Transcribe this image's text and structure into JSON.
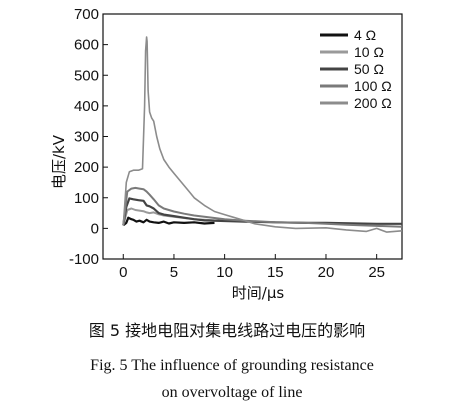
{
  "chart_data": {
    "type": "line",
    "xlabel": "时间/μs",
    "ylabel": "电压/kV",
    "xlim": [
      -2,
      27.5
    ],
    "ylim": [
      -100,
      700
    ],
    "xticks": [
      0,
      5,
      10,
      15,
      20,
      25
    ],
    "yticks": [
      -100,
      0,
      100,
      200,
      300,
      400,
      500,
      600,
      700
    ],
    "xtick_labels": [
      "0",
      "5",
      "10",
      "15",
      "20",
      "25"
    ],
    "ytick_labels": [
      "-100",
      "0",
      "100",
      "200",
      "300",
      "400",
      "500",
      "600",
      "700"
    ],
    "legend_position": "top-right",
    "grid": false,
    "series": [
      {
        "name": "4 Ω",
        "color": "#111111",
        "x": [
          0,
          0.3,
          0.5,
          0.8,
          1.0,
          1.3,
          1.6,
          2.0,
          2.3,
          2.6,
          3.0,
          3.5,
          4.0,
          4.5,
          5.0,
          6.0,
          7.0,
          8.0,
          9.0
        ],
        "y": [
          10,
          18,
          35,
          30,
          28,
          22,
          25,
          20,
          28,
          22,
          20,
          18,
          22,
          16,
          20,
          18,
          20,
          16,
          18
        ]
      },
      {
        "name": "10 Ω",
        "color": "#9a9a9a",
        "x": [
          0,
          0.4,
          0.8,
          1.2,
          1.6,
          2.0,
          2.3,
          2.6,
          3.0,
          3.5,
          4.0,
          5.0,
          6.0,
          7.0,
          8.0,
          9.0,
          10.0
        ],
        "y": [
          10,
          60,
          65,
          60,
          58,
          56,
          52,
          50,
          52,
          46,
          42,
          38,
          34,
          30,
          28,
          26,
          25
        ]
      },
      {
        "name": "50 Ω",
        "color": "#444444",
        "x": [
          0,
          0.3,
          0.6,
          1.0,
          1.5,
          2.0,
          2.3,
          2.6,
          3.0,
          3.5,
          4.0,
          5.0,
          6.0,
          7.0,
          8.0,
          10.0,
          12.0,
          15.0,
          18.0,
          20.0,
          25.0,
          27.5
        ],
        "y": [
          10,
          70,
          98,
          95,
          92,
          90,
          75,
          72,
          65,
          50,
          45,
          40,
          35,
          30,
          26,
          24,
          22,
          20,
          18,
          18,
          15,
          15
        ]
      },
      {
        "name": "100 Ω",
        "color": "#7a7a7a",
        "x": [
          0,
          0.4,
          0.8,
          1.2,
          1.6,
          2.0,
          2.3,
          2.6,
          3.0,
          3.5,
          4.0,
          5.0,
          6.0,
          7.0,
          8.0,
          9.0,
          10.0,
          12.0,
          15.0,
          18.0,
          20.0,
          22.0,
          25.0,
          27.5
        ],
        "y": [
          12,
          120,
          130,
          132,
          130,
          128,
          120,
          110,
          95,
          75,
          65,
          55,
          48,
          42,
          38,
          34,
          30,
          25,
          20,
          18,
          15,
          12,
          8,
          5
        ]
      },
      {
        "name": "200 Ω",
        "color": "#8c8c8c",
        "x": [
          0,
          0.3,
          0.6,
          1.0,
          1.5,
          1.9,
          2.1,
          2.2,
          2.3,
          2.35,
          2.45,
          2.6,
          2.8,
          3.0,
          3.3,
          3.6,
          4.0,
          4.5,
          5.0,
          5.5,
          6.0,
          6.5,
          7.0,
          8.0,
          9.0,
          10.0,
          11.0,
          12.0,
          13.0,
          15.0,
          17.0,
          20.0,
          22.0,
          24.0,
          25.0,
          26.0,
          27.5
        ],
        "y": [
          10,
          150,
          185,
          190,
          190,
          195,
          400,
          580,
          625,
          610,
          450,
          380,
          360,
          350,
          300,
          260,
          225,
          200,
          180,
          160,
          140,
          120,
          100,
          75,
          55,
          45,
          35,
          25,
          15,
          5,
          0,
          2,
          -5,
          -10,
          0,
          -12,
          -8
        ]
      }
    ]
  },
  "caption": {
    "cn": "图 5   接地电阻对集电线路过电压的影响",
    "en_line1": "Fig. 5    The influence of grounding resistance",
    "en_line2": "on overvoltage of line"
  }
}
